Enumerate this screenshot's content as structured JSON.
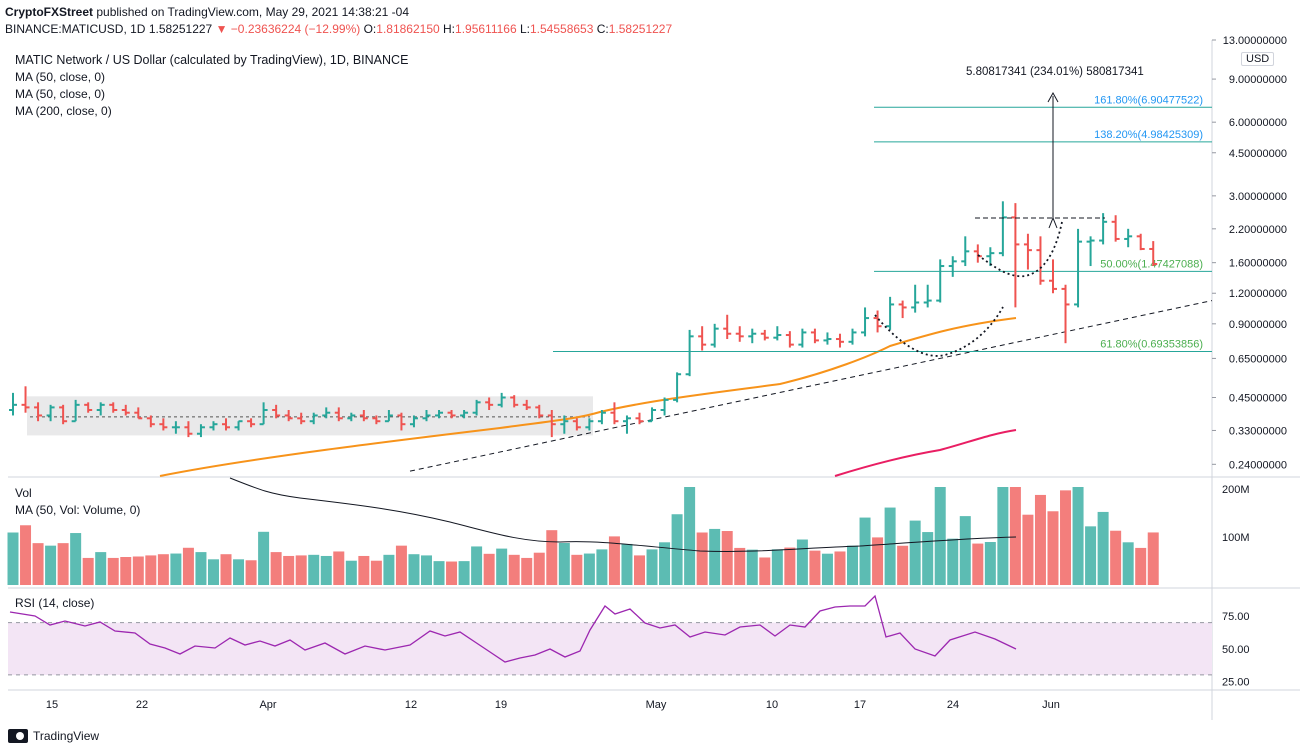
{
  "header": {
    "author": "CryptoFXStreet",
    "published_text": "published on TradingView.com, May 29, 2021 14:38:21 -04",
    "symbol_line_prefix": "BINANCE:MATICUSD, 1D",
    "last_price": "1.58251227",
    "change": "−0.23636224 (−12.99%)",
    "ohlc": {
      "o_label": "O:",
      "o": "1.81862150",
      "h_label": "H:",
      "h": "1.95611166",
      "l_label": "L:",
      "l": "1.54558653",
      "c_label": "C:",
      "c": "1.58251227"
    }
  },
  "legend": {
    "title": "MATIC Network / US Dollar (calculated by TradingView), 1D, BINANCE",
    "ma1": "MA (50, close, 0)",
    "ma2": "MA (50, close, 0)",
    "ma3": "MA (200, close, 0)",
    "vol": "Vol",
    "vol_ma": "MA (50, Vol: Volume, 0)",
    "rsi": "RSI (14, close)"
  },
  "currency": "USD",
  "footer": {
    "brand": "TradingView"
  },
  "colors": {
    "up": "#26a69a",
    "down": "#ef5350",
    "ma50": "#f7931a",
    "ma200": "#e91e63",
    "fib": "#26a69a",
    "fib_label_green": "#4caf50",
    "fib_label_blue": "#2196f3",
    "rsi": "#9c27b0",
    "rsi_band": "#f3e5f5"
  },
  "chart_data": {
    "type": "bar",
    "price_axis": {
      "scale": "log",
      "ticks": [
        "13.00000000",
        "9.00000000",
        "6.00000000",
        "4.50000000",
        "3.00000000",
        "2.20000000",
        "1.60000000",
        "1.20000000",
        "0.90000000",
        "0.65000000",
        "0.45000000",
        "0.33000000",
        "0.24000000"
      ]
    },
    "x_axis": {
      "ticks": [
        "15",
        "22",
        "Apr",
        "12",
        "19",
        "May",
        "10",
        "17",
        "24",
        "Jun"
      ]
    },
    "candles": [
      {
        "o": 0.4,
        "h": 0.47,
        "l": 0.38,
        "c": 0.42
      },
      {
        "o": 0.42,
        "h": 0.5,
        "l": 0.39,
        "c": 0.41
      },
      {
        "o": 0.41,
        "h": 0.43,
        "l": 0.36,
        "c": 0.38
      },
      {
        "o": 0.38,
        "h": 0.42,
        "l": 0.36,
        "c": 0.41
      },
      {
        "o": 0.41,
        "h": 0.42,
        "l": 0.35,
        "c": 0.36
      },
      {
        "o": 0.36,
        "h": 0.44,
        "l": 0.36,
        "c": 0.42
      },
      {
        "o": 0.42,
        "h": 0.43,
        "l": 0.39,
        "c": 0.4
      },
      {
        "o": 0.4,
        "h": 0.43,
        "l": 0.38,
        "c": 0.42
      },
      {
        "o": 0.42,
        "h": 0.43,
        "l": 0.39,
        "c": 0.4
      },
      {
        "o": 0.4,
        "h": 0.42,
        "l": 0.38,
        "c": 0.39
      },
      {
        "o": 0.39,
        "h": 0.41,
        "l": 0.37,
        "c": 0.37
      },
      {
        "o": 0.37,
        "h": 0.38,
        "l": 0.34,
        "c": 0.35
      },
      {
        "o": 0.35,
        "h": 0.37,
        "l": 0.33,
        "c": 0.34
      },
      {
        "o": 0.34,
        "h": 0.36,
        "l": 0.32,
        "c": 0.34
      },
      {
        "o": 0.34,
        "h": 0.36,
        "l": 0.31,
        "c": 0.32
      },
      {
        "o": 0.32,
        "h": 0.35,
        "l": 0.31,
        "c": 0.34
      },
      {
        "o": 0.34,
        "h": 0.36,
        "l": 0.33,
        "c": 0.35
      },
      {
        "o": 0.35,
        "h": 0.37,
        "l": 0.33,
        "c": 0.34
      },
      {
        "o": 0.34,
        "h": 0.36,
        "l": 0.33,
        "c": 0.36
      },
      {
        "o": 0.36,
        "h": 0.37,
        "l": 0.34,
        "c": 0.35
      },
      {
        "o": 0.35,
        "h": 0.43,
        "l": 0.35,
        "c": 0.4
      },
      {
        "o": 0.4,
        "h": 0.42,
        "l": 0.37,
        "c": 0.38
      },
      {
        "o": 0.38,
        "h": 0.4,
        "l": 0.36,
        "c": 0.37
      },
      {
        "o": 0.37,
        "h": 0.39,
        "l": 0.35,
        "c": 0.36
      },
      {
        "o": 0.36,
        "h": 0.39,
        "l": 0.35,
        "c": 0.38
      },
      {
        "o": 0.38,
        "h": 0.41,
        "l": 0.37,
        "c": 0.39
      },
      {
        "o": 0.39,
        "h": 0.41,
        "l": 0.36,
        "c": 0.37
      },
      {
        "o": 0.37,
        "h": 0.39,
        "l": 0.36,
        "c": 0.38
      },
      {
        "o": 0.38,
        "h": 0.4,
        "l": 0.36,
        "c": 0.37
      },
      {
        "o": 0.37,
        "h": 0.38,
        "l": 0.35,
        "c": 0.36
      },
      {
        "o": 0.36,
        "h": 0.4,
        "l": 0.36,
        "c": 0.38
      },
      {
        "o": 0.38,
        "h": 0.39,
        "l": 0.33,
        "c": 0.35
      },
      {
        "o": 0.35,
        "h": 0.38,
        "l": 0.34,
        "c": 0.37
      },
      {
        "o": 0.37,
        "h": 0.4,
        "l": 0.36,
        "c": 0.38
      },
      {
        "o": 0.38,
        "h": 0.4,
        "l": 0.37,
        "c": 0.39
      },
      {
        "o": 0.39,
        "h": 0.4,
        "l": 0.37,
        "c": 0.38
      },
      {
        "o": 0.38,
        "h": 0.4,
        "l": 0.37,
        "c": 0.39
      },
      {
        "o": 0.39,
        "h": 0.44,
        "l": 0.38,
        "c": 0.43
      },
      {
        "o": 0.43,
        "h": 0.45,
        "l": 0.4,
        "c": 0.42
      },
      {
        "o": 0.42,
        "h": 0.47,
        "l": 0.41,
        "c": 0.45
      },
      {
        "o": 0.45,
        "h": 0.46,
        "l": 0.41,
        "c": 0.42
      },
      {
        "o": 0.42,
        "h": 0.44,
        "l": 0.4,
        "c": 0.41
      },
      {
        "o": 0.41,
        "h": 0.42,
        "l": 0.37,
        "c": 0.38
      },
      {
        "o": 0.38,
        "h": 0.4,
        "l": 0.31,
        "c": 0.35
      },
      {
        "o": 0.35,
        "h": 0.38,
        "l": 0.32,
        "c": 0.36
      },
      {
        "o": 0.36,
        "h": 0.37,
        "l": 0.33,
        "c": 0.34
      },
      {
        "o": 0.34,
        "h": 0.37,
        "l": 0.33,
        "c": 0.36
      },
      {
        "o": 0.36,
        "h": 0.4,
        "l": 0.35,
        "c": 0.39
      },
      {
        "o": 0.39,
        "h": 0.43,
        "l": 0.35,
        "c": 0.36
      },
      {
        "o": 0.36,
        "h": 0.38,
        "l": 0.32,
        "c": 0.37
      },
      {
        "o": 0.37,
        "h": 0.39,
        "l": 0.35,
        "c": 0.36
      },
      {
        "o": 0.36,
        "h": 0.41,
        "l": 0.36,
        "c": 0.4
      },
      {
        "o": 0.4,
        "h": 0.45,
        "l": 0.38,
        "c": 0.44
      },
      {
        "o": 0.44,
        "h": 0.57,
        "l": 0.43,
        "c": 0.56
      },
      {
        "o": 0.56,
        "h": 0.85,
        "l": 0.55,
        "c": 0.8
      },
      {
        "o": 0.8,
        "h": 0.88,
        "l": 0.7,
        "c": 0.74
      },
      {
        "o": 0.74,
        "h": 0.9,
        "l": 0.72,
        "c": 0.86
      },
      {
        "o": 0.86,
        "h": 0.98,
        "l": 0.78,
        "c": 0.82
      },
      {
        "o": 0.82,
        "h": 0.88,
        "l": 0.76,
        "c": 0.8
      },
      {
        "o": 0.8,
        "h": 0.86,
        "l": 0.75,
        "c": 0.82
      },
      {
        "o": 0.82,
        "h": 0.85,
        "l": 0.77,
        "c": 0.79
      },
      {
        "o": 0.79,
        "h": 0.88,
        "l": 0.77,
        "c": 0.81
      },
      {
        "o": 0.81,
        "h": 0.84,
        "l": 0.72,
        "c": 0.74
      },
      {
        "o": 0.74,
        "h": 0.86,
        "l": 0.72,
        "c": 0.83
      },
      {
        "o": 0.83,
        "h": 0.86,
        "l": 0.75,
        "c": 0.77
      },
      {
        "o": 0.77,
        "h": 0.83,
        "l": 0.74,
        "c": 0.78
      },
      {
        "o": 0.78,
        "h": 0.82,
        "l": 0.72,
        "c": 0.76
      },
      {
        "o": 0.76,
        "h": 0.86,
        "l": 0.74,
        "c": 0.83
      },
      {
        "o": 0.83,
        "h": 1.05,
        "l": 0.8,
        "c": 0.95
      },
      {
        "o": 0.95,
        "h": 1.02,
        "l": 0.83,
        "c": 0.88
      },
      {
        "o": 0.88,
        "h": 1.16,
        "l": 0.85,
        "c": 1.08
      },
      {
        "o": 1.08,
        "h": 1.12,
        "l": 0.95,
        "c": 1.05
      },
      {
        "o": 1.05,
        "h": 1.3,
        "l": 1.0,
        "c": 1.1
      },
      {
        "o": 1.1,
        "h": 1.3,
        "l": 1.05,
        "c": 1.12
      },
      {
        "o": 1.12,
        "h": 1.65,
        "l": 1.1,
        "c": 1.55
      },
      {
        "o": 1.55,
        "h": 1.7,
        "l": 1.4,
        "c": 1.62
      },
      {
        "o": 1.62,
        "h": 2.05,
        "l": 1.55,
        "c": 1.78
      },
      {
        "o": 1.78,
        "h": 1.9,
        "l": 1.6,
        "c": 1.7
      },
      {
        "o": 1.7,
        "h": 1.85,
        "l": 1.55,
        "c": 1.75
      },
      {
        "o": 1.75,
        "h": 2.85,
        "l": 1.7,
        "c": 2.45
      },
      {
        "o": 2.45,
        "h": 2.8,
        "l": 1.05,
        "c": 1.9
      },
      {
        "o": 1.9,
        "h": 2.1,
        "l": 1.5,
        "c": 1.8
      },
      {
        "o": 1.8,
        "h": 2.05,
        "l": 1.3,
        "c": 1.35
      },
      {
        "o": 1.35,
        "h": 1.65,
        "l": 1.2,
        "c": 1.25
      },
      {
        "o": 1.25,
        "h": 1.3,
        "l": 0.75,
        "c": 1.08
      },
      {
        "o": 1.08,
        "h": 2.2,
        "l": 1.05,
        "c": 1.95
      },
      {
        "o": 1.95,
        "h": 2.05,
        "l": 1.55,
        "c": 1.97
      },
      {
        "o": 1.97,
        "h": 2.55,
        "l": 1.9,
        "c": 2.35
      },
      {
        "o": 2.35,
        "h": 2.5,
        "l": 1.95,
        "c": 2.0
      },
      {
        "o": 2.0,
        "h": 2.2,
        "l": 1.85,
        "c": 2.05
      },
      {
        "o": 2.05,
        "h": 2.1,
        "l": 1.8,
        "c": 1.82
      },
      {
        "o": 1.82,
        "h": 1.96,
        "l": 1.55,
        "c": 1.58
      }
    ],
    "annotations": {
      "target_text": "5.80817341 (234.01%) 580817341",
      "fib_levels": [
        {
          "label": "161.80%(6.90477522)",
          "price": 6.90477522
        },
        {
          "label": "138.20%(4.98425309)",
          "price": 4.98425309
        },
        {
          "label": "50.00%(1.47427088)",
          "price": 1.47427088
        },
        {
          "label": "61.80%(0.69353856)",
          "price": 0.69353856
        }
      ]
    },
    "volume_axis": {
      "ticks": [
        "200M",
        "100M"
      ]
    },
    "rsi_axis": {
      "ticks": [
        "75.00",
        "50.00",
        "25.00"
      ]
    }
  }
}
